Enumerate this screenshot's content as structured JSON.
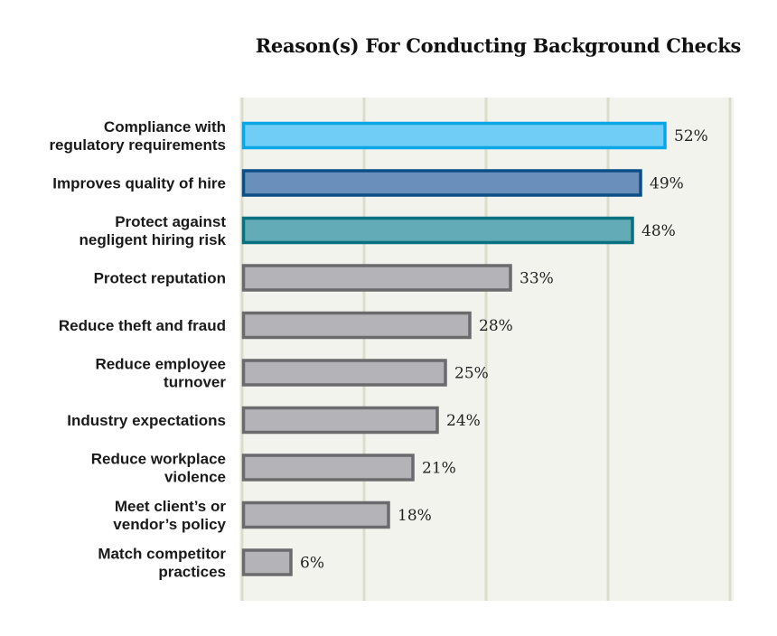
{
  "chart_data": {
    "type": "bar",
    "orientation": "horizontal",
    "title": "Reason(s) For Conducting Background Checks",
    "categories": [
      [
        "Compliance with",
        "regulatory requirements"
      ],
      [
        "Improves quality of hire"
      ],
      [
        "Protect against",
        "negligent hiring risk"
      ],
      [
        "Protect reputation"
      ],
      [
        "Reduce theft and fraud"
      ],
      [
        "Reduce employee",
        "turnover"
      ],
      [
        "Industry expectations"
      ],
      [
        "Reduce workplace",
        "violence"
      ],
      [
        "Meet client’s or",
        "vendor’s policy"
      ],
      [
        "Match competitor",
        "practices"
      ]
    ],
    "values": [
      52,
      49,
      48,
      33,
      28,
      25,
      24,
      21,
      18,
      6
    ],
    "value_labels": [
      "52%",
      "49%",
      "48%",
      "33%",
      "28%",
      "25%",
      "24%",
      "21%",
      "18%",
      "6%"
    ],
    "unit": "%",
    "xlim": [
      0,
      60
    ],
    "grid": true,
    "grid_interval": 15,
    "colors": {
      "fill": [
        "#70cdf5",
        "#6a8fba",
        "#64abb8",
        "#b4b3b8",
        "#b4b3b8",
        "#b4b3b8",
        "#b4b3b8",
        "#b4b3b8",
        "#b4b3b8",
        "#b4b3b8"
      ],
      "stroke": [
        "#0aa6e6",
        "#0c4f87",
        "#08707f",
        "#6b6b6e",
        "#6b6b6e",
        "#6b6b6e",
        "#6b6b6e",
        "#6b6b6e",
        "#6b6b6e",
        "#6b6b6e"
      ],
      "plot_background": "#f3f3ee",
      "gridline": "#dcdccb"
    }
  }
}
